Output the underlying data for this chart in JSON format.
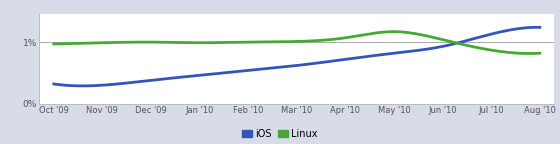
{
  "x_labels": [
    "Oct '09",
    "Nov '09",
    "Dec '09",
    "Jan '10",
    "Feb '10",
    "Mar '10",
    "Apr '10",
    "May '10",
    "Jun '10",
    "Jul '10",
    "Aug '10"
  ],
  "ios_values": [
    0.32,
    0.3,
    0.38,
    0.46,
    0.54,
    0.62,
    0.72,
    0.82,
    0.93,
    1.13,
    1.24
  ],
  "linux_values": [
    0.97,
    0.99,
    1.0,
    0.99,
    1.0,
    1.01,
    1.07,
    1.17,
    1.04,
    0.87,
    0.82
  ],
  "ios_color": "#3355bb",
  "linux_color": "#44aa33",
  "fig_bg_color": "#d8dce8",
  "plot_bg_color": "#ffffff",
  "grid_color": "#aaaaaa",
  "tick_color": "#555555",
  "ylim": [
    0.0,
    1.45
  ],
  "ytick_vals": [
    0.0,
    1.0
  ],
  "ytick_labels": [
    "0%",
    "1%"
  ],
  "legend_labels": [
    "iOS",
    "Linux"
  ],
  "line_width": 2.0
}
